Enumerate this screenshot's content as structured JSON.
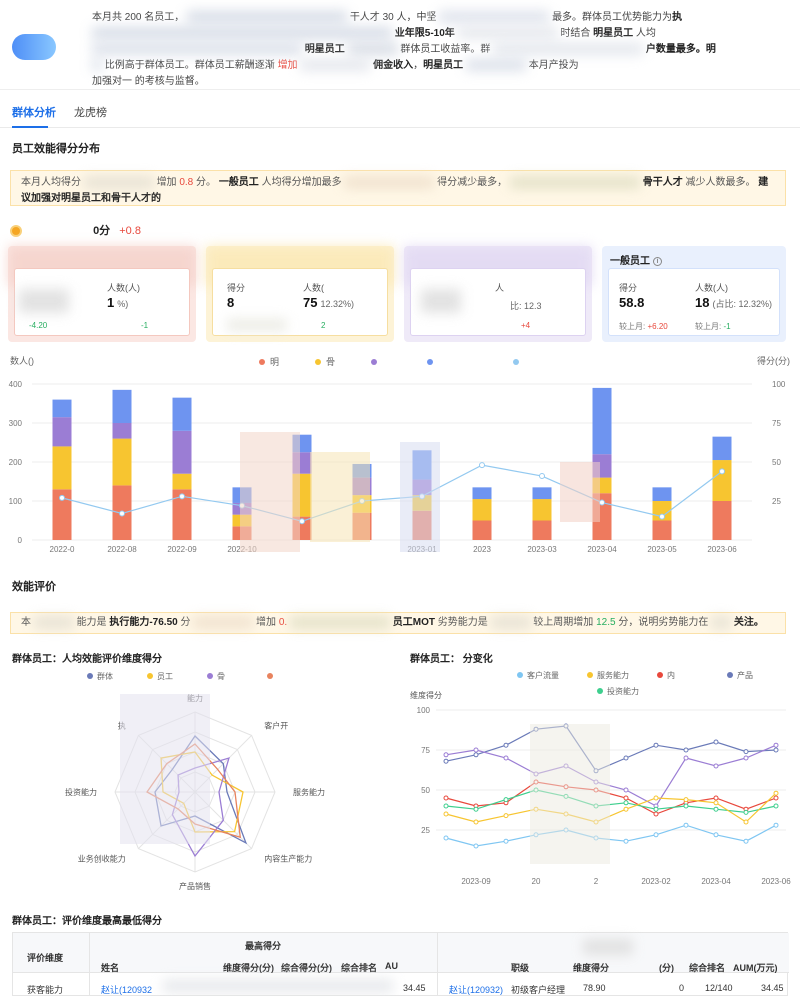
{
  "summary": {
    "line1_a": "本月共 200 名员工，",
    "line1_b": "干人才 30 人，中坚",
    "line1_c": "最多。群体员工优势能力为",
    "line1_d": "执",
    "line2_a": "业年限5-10年",
    "line2_b": "时结合",
    "line2_c": "明星员工",
    "line2_d": "人均",
    "line3_a": "明星员工",
    "line3_b": "群体员工收益率。群",
    "line3_c": "户数量最多。明",
    "line4_a": "比例高于群体员工。群体员工薪酬逐渐",
    "line4_b": "增加",
    "line4_c": "佣金收入",
    "line4_d": "明星员工",
    "line4_e": "本月产投为",
    "line5": "加强对一      的考核与监督。"
  },
  "tabs": [
    {
      "label": "群体分析"
    },
    {
      "label": "龙虎榜"
    }
  ],
  "sections": {
    "dist_title": "员工效能得分分布",
    "eval_title": "效能评价",
    "radar_title": "群体员工：人均效能评价维度得分",
    "line_title": "群体员工：                      分变化",
    "table_title": "群体员工：评价维度最高最低得分"
  },
  "notice1": {
    "a": "本月人均得分",
    "b": "增加",
    "c": "0.8",
    "d": "分。",
    "e": "一般员工",
    "f": "人均得分增加最多",
    "g": "得分减少最多，",
    "h": "骨干人才",
    "i": "减少人数最多。",
    "j": "建议加强对明星员工和骨干人才的"
  },
  "score": {
    "value": "0分",
    "delta": "+0.8"
  },
  "cards": [
    {
      "title": "",
      "score_label": "",
      "score": "",
      "count_label": "人数(人)",
      "count": "1",
      "share": "%)",
      "chg_score": "-4.20",
      "chg_count": "-1"
    },
    {
      "title": "",
      "score_label": "得分",
      "score": "8",
      "count_label": "人数(",
      "count": "75",
      "share": "12.32%)",
      "chg_score": "",
      "chg_count": "2"
    },
    {
      "title": "",
      "score_label": "",
      "score": "",
      "count_label": "人",
      "count": "",
      "share": "比: 12.3",
      "chg_score": "",
      "chg_count": "+4"
    },
    {
      "title": "一般员工",
      "score_label": "得分",
      "score": "58.8",
      "count_label": "人数(人)",
      "count": "18",
      "share": "(占比: 12.32%)",
      "chg_prefix": "较上月:",
      "chg_score": "+6.20",
      "chg_count": "-1"
    }
  ],
  "chart_data": {
    "type": "bar",
    "ylabel_left": "数人()",
    "ylabel_right": "得分(分)",
    "ylim_left": [
      0,
      400
    ],
    "ylim_right": [
      0,
      100
    ],
    "left_ticks": [
      "400",
      "300",
      "200",
      "100",
      "0"
    ],
    "right_ticks": [
      "100",
      "75",
      "50",
      "25"
    ],
    "categories": [
      "2022-0",
      "2022-08",
      "2022-09",
      "2022-10",
      "",
      "",
      "2023-01",
      "2023",
      "2023-03",
      "2023-04",
      "2023-05",
      "2023-06"
    ],
    "series": [
      {
        "name": "明",
        "color": "#ee7a5e",
        "values": [
          130,
          140,
          130,
          35,
          60,
          70,
          75,
          50,
          50,
          120,
          50,
          100
        ]
      },
      {
        "name": "骨",
        "color": "#f7c530",
        "values": [
          110,
          120,
          40,
          30,
          110,
          45,
          40,
          55,
          55,
          40,
          50,
          105
        ]
      },
      {
        "name": "",
        "color": "#9b7dd4",
        "values": [
          75,
          40,
          110,
          30,
          55,
          45,
          40,
          0,
          0,
          60,
          0,
          0
        ]
      },
      {
        "name": "",
        "color": "#6e94f0",
        "values": [
          45,
          85,
          85,
          40,
          45,
          35,
          75,
          30,
          30,
          170,
          35,
          60
        ]
      }
    ],
    "line": {
      "name": "",
      "color": "#93c9f0",
      "values": [
        27,
        17,
        28,
        22,
        12,
        25,
        28,
        48,
        41,
        24,
        15,
        44
      ]
    }
  },
  "notice2": {
    "a": "本",
    "b": "能力是",
    "c": "执行能力-76.50",
    "d": "分",
    "e": "增加",
    "f": "0.",
    "g": "员工MOT",
    "h": "劣势能力是",
    "i": "较上周期增加",
    "j": "12.5",
    "k": "分，说明劣势能力在",
    "l": "关注。"
  },
  "radar": {
    "legend": [
      "群体",
      "员工",
      "骨",
      ""
    ],
    "legend_colors": [
      "#6a7ab8",
      "#f7c530",
      "#9b7dd4",
      "#e8835e"
    ],
    "axes": [
      "能力",
      "客户开",
      "服务能力",
      "内容生产能力",
      "产品销售",
      "业务创收能力",
      "投资能力",
      "执"
    ]
  },
  "linechart": {
    "legend": [
      "客户流量",
      "服务能力",
      "内",
      "产品",
      "投资能力"
    ],
    "legend_colors": [
      "#7fc6f2",
      "#f7c530",
      "#e8483c",
      "#6a7ab8",
      "#3ecf8e"
    ],
    "ylabel": "维度得分",
    "yticks": [
      "100",
      "75",
      "50",
      "25"
    ],
    "xticks": [
      "2023-09",
      "20",
      "2",
      "2023-02",
      "2023-04",
      "2023-06"
    ]
  },
  "table": {
    "h_dim": "评价维度",
    "h_max": "最高得分",
    "h_name": "姓名",
    "h_dimscore": "维度得分(分)",
    "h_total": "综合得分(分)",
    "h_rank": "综合排名",
    "h_aum": "AU",
    "h_level": "职级",
    "h_dimscore2": "维度得分",
    "h_total2": "(分)",
    "h_rank2": "综合排名",
    "h_aum2": "AUM(万元)",
    "r_dim": "获客能力",
    "r_name": "赵让(120932",
    "r_aum": "34.45",
    "r_name2": "赵让(120932)",
    "r_level": "初级客户经理",
    "r_score": "78.90",
    "r_total": "0",
    "r_rank": "12/140",
    "r_aum2": "34.45"
  }
}
